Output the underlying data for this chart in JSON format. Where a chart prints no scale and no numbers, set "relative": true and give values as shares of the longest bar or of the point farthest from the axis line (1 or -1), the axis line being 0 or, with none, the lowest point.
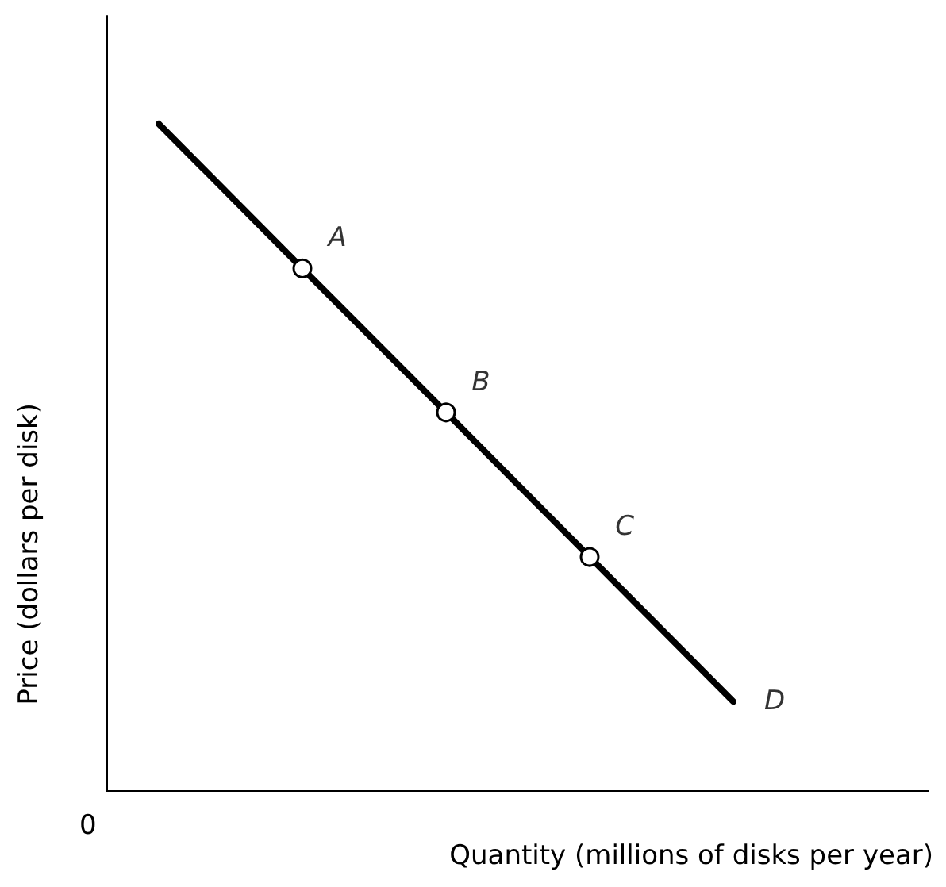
{
  "chart_data": {
    "type": "line",
    "relative": true,
    "xlabel": "Quantity (millions of disks per year)",
    "ylabel": "Price (dollars per disk)",
    "categories": [
      null,
      null,
      null,
      null,
      null
    ],
    "series": [
      {
        "color": "#000000",
        "marker": "circle",
        "values": [
          1,
          0.783,
          0.567,
          0.35,
          0.133
        ]
      }
    ],
    "annotations": [
      "0",
      "A",
      "B",
      "C",
      "D"
    ],
    "grid": false
  }
}
